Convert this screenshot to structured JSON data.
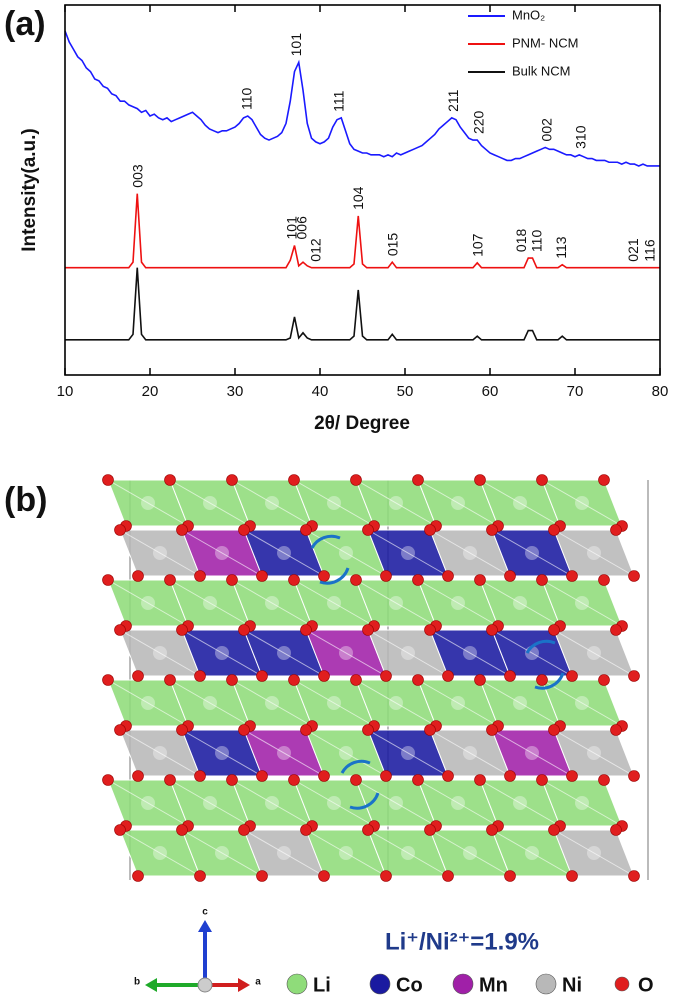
{
  "chart_data": {
    "type": "line",
    "panel_label": "(a)",
    "xlabel": "2θ/ Degree",
    "ylabel": "Intensity(a.u.)",
    "xlim": [
      10,
      80
    ],
    "ylim": [
      0,
      100
    ],
    "xticks": [
      10,
      20,
      30,
      40,
      50,
      60,
      70,
      80
    ],
    "legend": "upper right",
    "x": [
      10,
      10.5,
      11,
      11.5,
      12,
      12.5,
      13,
      13.5,
      14,
      14.5,
      15,
      15.5,
      16,
      16.5,
      17,
      17.5,
      18,
      18.5,
      19,
      19.5,
      20,
      20.5,
      21,
      21.5,
      22,
      22.5,
      23,
      23.5,
      24,
      24.5,
      25,
      25.5,
      26,
      26.5,
      27,
      27.5,
      28,
      28.5,
      29,
      29.5,
      30,
      30.5,
      31,
      31.5,
      32,
      32.5,
      33,
      33.5,
      34,
      34.5,
      35,
      35.5,
      36,
      36.5,
      37,
      37.5,
      38,
      38.5,
      39,
      39.5,
      40,
      40.5,
      41,
      41.5,
      42,
      42.5,
      43,
      43.5,
      44,
      44.5,
      45,
      45.5,
      46,
      46.5,
      47,
      47.5,
      48,
      48.5,
      49,
      49.5,
      50,
      50.5,
      51,
      51.5,
      52,
      52.5,
      53,
      53.5,
      54,
      54.5,
      55,
      55.5,
      56,
      56.5,
      57,
      57.5,
      58,
      58.5,
      59,
      59.5,
      60,
      60.5,
      61,
      61.5,
      62,
      62.5,
      63,
      63.5,
      64,
      64.5,
      65,
      65.5,
      66,
      66.5,
      67,
      67.5,
      68,
      68.5,
      69,
      69.5,
      70,
      70.5,
      71,
      71.5,
      72,
      72.5,
      73,
      73.5,
      74,
      74.5,
      75,
      75.5,
      76,
      76.5,
      77,
      77.5,
      78,
      78.5,
      79,
      79.5,
      80
    ],
    "series": [
      {
        "name": "MnO₂",
        "color": "#1a1aff",
        "values": [
          93,
          90,
          88,
          86,
          85,
          83,
          82,
          80,
          79.5,
          78,
          77.5,
          76,
          75.5,
          74,
          74,
          73,
          72.5,
          72,
          71,
          71.5,
          70,
          70.5,
          69.5,
          69,
          69.5,
          68.5,
          69,
          69.5,
          70,
          70.5,
          71,
          70,
          69,
          67.5,
          66.5,
          66,
          65.5,
          66,
          66,
          66.5,
          67,
          68,
          69.5,
          70,
          69,
          67,
          65,
          64,
          63.5,
          64,
          64.5,
          65.5,
          68,
          74,
          82,
          84.5,
          77,
          68,
          64,
          63,
          62.5,
          63,
          64,
          67,
          69,
          69.5,
          66,
          62.5,
          61,
          60.5,
          60,
          60,
          59.5,
          59.5,
          59.5,
          59,
          59.5,
          59,
          60,
          59.5,
          60,
          60.5,
          61,
          61.5,
          62,
          63,
          64,
          65,
          66.5,
          67.5,
          68.5,
          69.5,
          69,
          67,
          65.5,
          64,
          63.5,
          63.5,
          62,
          61,
          60,
          59.5,
          59,
          58.5,
          58,
          58,
          58.5,
          58.5,
          59,
          59.5,
          60,
          60.5,
          61,
          61.5,
          61,
          61,
          60.5,
          60,
          59.5,
          59.5,
          59,
          59.5,
          59,
          58.5,
          58.5,
          58,
          58,
          58,
          57.5,
          57.5,
          57.5,
          57,
          57.5,
          57,
          57,
          56.5,
          57,
          56.5,
          56.5,
          56.5,
          56.5
        ],
        "peak_labels": [
          {
            "text": "110",
            "x": 31.5
          },
          {
            "text": "101",
            "x": 37.3
          },
          {
            "text": "111",
            "x": 42.3
          },
          {
            "text": "211",
            "x": 55.8
          },
          {
            "text": "220",
            "x": 58.8
          },
          {
            "text": "002",
            "x": 66.8
          },
          {
            "text": "310",
            "x": 70.8
          }
        ]
      },
      {
        "name": "PNM- NCM",
        "color": "#ee1111",
        "values": [
          29,
          29,
          29,
          29,
          29,
          29,
          29,
          29,
          29,
          29,
          29,
          29,
          29,
          29,
          29,
          29,
          30.5,
          49,
          30.5,
          29,
          29,
          29,
          29,
          29,
          29,
          29,
          29,
          29,
          29,
          29,
          29,
          29,
          29,
          29,
          29,
          29,
          29,
          29,
          29,
          29,
          29,
          29,
          29,
          29,
          29,
          29,
          29,
          29,
          29,
          29,
          29,
          29,
          29,
          31,
          35,
          29.5,
          30.5,
          29.5,
          29,
          29,
          29,
          29,
          29,
          29,
          29,
          29,
          29,
          29,
          30,
          43,
          30,
          29,
          29,
          29,
          29,
          29,
          29,
          30.5,
          29,
          29,
          29,
          29,
          29,
          29,
          29,
          29,
          29,
          29,
          29,
          29,
          29,
          29,
          29,
          29,
          29,
          29,
          29,
          30.3,
          29,
          29,
          29,
          29,
          29,
          29,
          29,
          29,
          29,
          29,
          29,
          31.6,
          31.6,
          29,
          29,
          29,
          29,
          29,
          29,
          29.8,
          29,
          29,
          29,
          29,
          29,
          29,
          29,
          29,
          29,
          29,
          29,
          29,
          29,
          29,
          29,
          29,
          29,
          29,
          29,
          29,
          29,
          29,
          29
        ],
        "peak_labels": [
          {
            "text": "003",
            "x": 18.7
          },
          {
            "text": "101",
            "x": 36.8
          },
          {
            "text": "006",
            "x": 38.0
          },
          {
            "text": "012",
            "x": 39.6
          },
          {
            "text": "104",
            "x": 44.6
          },
          {
            "text": "015",
            "x": 48.7
          },
          {
            "text": "107",
            "x": 58.7
          },
          {
            "text": "018",
            "x": 63.8
          },
          {
            "text": "110",
            "x": 65.6
          },
          {
            "text": "113",
            "x": 68.5
          },
          {
            "text": "021",
            "x": 77.0
          },
          {
            "text": "116",
            "x": 78.9
          }
        ]
      },
      {
        "name": "Bulk NCM",
        "color": "#111111",
        "values": [
          9.5,
          9.5,
          9.5,
          9.5,
          9.5,
          9.5,
          9.5,
          9.5,
          9.5,
          9.5,
          9.5,
          9.5,
          9.5,
          9.5,
          9.5,
          9.5,
          11,
          29,
          11,
          9.5,
          9.5,
          9.5,
          9.5,
          9.5,
          9.5,
          9.5,
          9.5,
          9.5,
          9.5,
          9.5,
          9.5,
          9.5,
          9.5,
          9.5,
          9.5,
          9.5,
          9.5,
          9.5,
          9.5,
          9.5,
          9.5,
          9.5,
          9.5,
          9.5,
          9.5,
          9.5,
          9.5,
          9.5,
          9.5,
          9.5,
          9.5,
          9.5,
          9.5,
          10,
          15.7,
          10,
          11.4,
          10,
          9.5,
          9.5,
          9.5,
          9.5,
          9.5,
          9.5,
          9.5,
          9.5,
          9.5,
          9.5,
          10.5,
          23,
          10.5,
          9.5,
          9.5,
          9.5,
          9.5,
          9.5,
          9.5,
          11,
          9.5,
          9.5,
          9.5,
          9.5,
          9.5,
          9.5,
          9.5,
          9.5,
          9.5,
          9.5,
          9.5,
          9.5,
          9.5,
          9.5,
          9.5,
          9.5,
          9.5,
          9.5,
          9.5,
          10.5,
          9.5,
          9.5,
          9.5,
          9.5,
          9.5,
          9.5,
          9.5,
          9.5,
          9.5,
          9.5,
          9.5,
          12,
          12,
          9.5,
          9.5,
          9.5,
          9.5,
          9.5,
          9.5,
          10.5,
          9.5,
          9.5,
          9.5,
          9.5,
          9.5,
          9.5,
          9.5,
          9.5,
          9.5,
          9.5,
          9.5,
          9.5,
          9.5,
          9.5,
          9.5,
          9.5,
          9.5,
          9.5,
          9.5,
          9.5,
          9.5,
          9.5,
          9.5
        ]
      }
    ]
  },
  "structure": {
    "panel_label": "(b)",
    "ratio_text": "Li⁺/Ni²⁺=1.9%",
    "axes": [
      "c",
      "b",
      "a"
    ],
    "legend": [
      {
        "name": "Li",
        "color": "#8fdc7a"
      },
      {
        "name": "Co",
        "color": "#1a1aa0"
      },
      {
        "name": "Mn",
        "color": "#a020a8"
      },
      {
        "name": "Ni",
        "color": "#b8b8b8"
      },
      {
        "name": "O",
        "color": "#e01e1e"
      }
    ]
  }
}
